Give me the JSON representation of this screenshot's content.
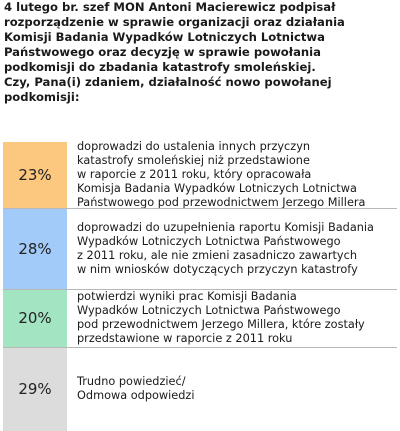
{
  "question": "4 lutego br. szef MON Antoni Macierewicz podpisał\nrozporządzenie w sprawie organizacji oraz działania\nKomisji Badania Wypadków Lotniczych Lotnictwa\nPaństwowego oraz decyzję w sprawie powołania\npodkomisji do zbadania katastrofy smoleńskiej.\nCzy, Pana(i) zdaniem, działalność nowo powołanej\npodkomisji:",
  "chart_data": {
    "type": "bar",
    "orientation": "stacked-vertical",
    "categories": [
      "doprowadzi do ustalenia innych przyczyn\nkatastrofy smoleńskiej niż przedstawione\nw raporcie z 2011 roku, który opracowała\nKomisja Badania Wypadków Lotniczych Lotnictwa\nPaństwowego pod przewodnictwem Jerzego Millera",
      "doprowadzi do uzupełnienia raportu Komisji Badania\nWypadków Lotniczych Lotnictwa Państwowego\nz 2011 roku, ale nie zmieni zasadniczo zawartych\nw nim wniosków dotyczących przyczyn katastrofy",
      "potwierdzi wyniki prac Komisji Badania\nWypadków Lotniczych Lotnictwa Państwowego\npod przewodnictwem Jerzego Millera, które zostały\nprzedstawione w raporcie z 2011 roku",
      "Trudno powiedzieć/\nOdmowa odpowiedzi"
    ],
    "values": [
      23,
      28,
      20,
      29
    ],
    "value_labels": [
      "23%",
      "28%",
      "20%",
      "29%"
    ],
    "colors": [
      "#fcc77e",
      "#a3cbf9",
      "#a3e4c2",
      "#dcdcdc"
    ]
  }
}
